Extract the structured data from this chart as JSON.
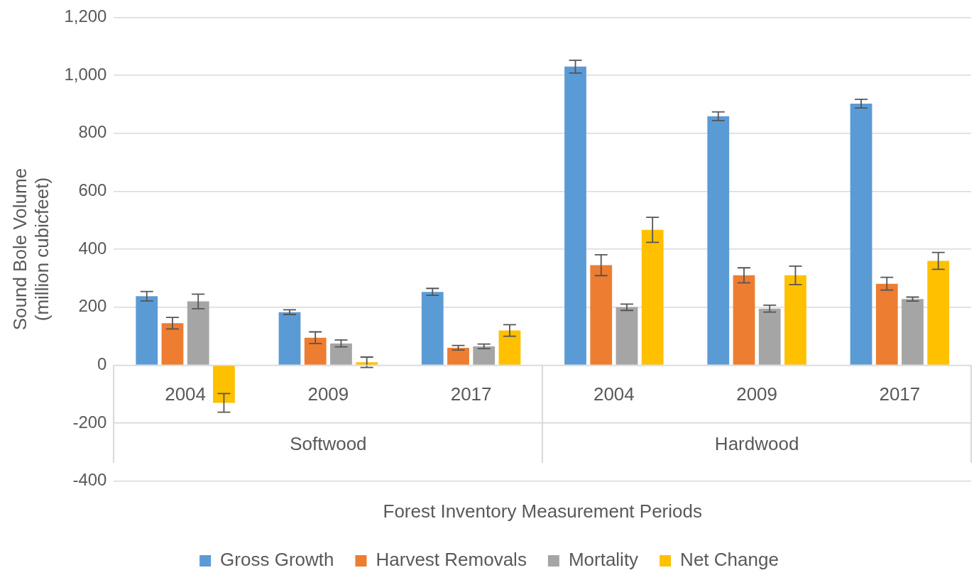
{
  "chart_data": {
    "type": "bar",
    "xlabel": "Forest Inventory Measurement Periods",
    "ylabel": "Sound Bole Volume\n(million cubicfeet)",
    "categories": [
      "2004",
      "2009",
      "2017",
      "2004",
      "2009",
      "2017"
    ],
    "annotations": [
      "Softwood",
      "Hardwood"
    ],
    "series": [
      {
        "name": "Gross Growth",
        "color": "#5b9bd5",
        "values": [
          238,
          183,
          253,
          1030,
          859,
          902
        ],
        "errors": [
          16,
          8,
          12,
          22,
          15,
          15
        ]
      },
      {
        "name": "Harvest Removals",
        "color": "#ed7d31",
        "values": [
          145,
          95,
          60,
          345,
          310,
          281
        ],
        "errors": [
          20,
          20,
          8,
          36,
          26,
          22
        ]
      },
      {
        "name": "Mortality",
        "color": "#a5a5a5",
        "values": [
          220,
          75,
          65,
          200,
          195,
          228
        ],
        "errors": [
          25,
          12,
          8,
          11,
          12,
          7
        ]
      },
      {
        "name": "Net Change",
        "color": "#ffc000",
        "values": [
          -130,
          10,
          120,
          467,
          310,
          360
        ],
        "errors": [
          32,
          18,
          20,
          43,
          32,
          29
        ]
      }
    ],
    "ylim": [
      -400,
      1200
    ],
    "yticks": [
      {
        "value": -400,
        "label": "-400"
      },
      {
        "value": -200,
        "label": "-200"
      },
      0,
      200,
      400,
      600,
      800,
      {
        "value": 1000,
        "label": "1,000"
      },
      {
        "value": 1200,
        "label": "1,200"
      }
    ],
    "grid": "y",
    "legend": "bottom"
  }
}
